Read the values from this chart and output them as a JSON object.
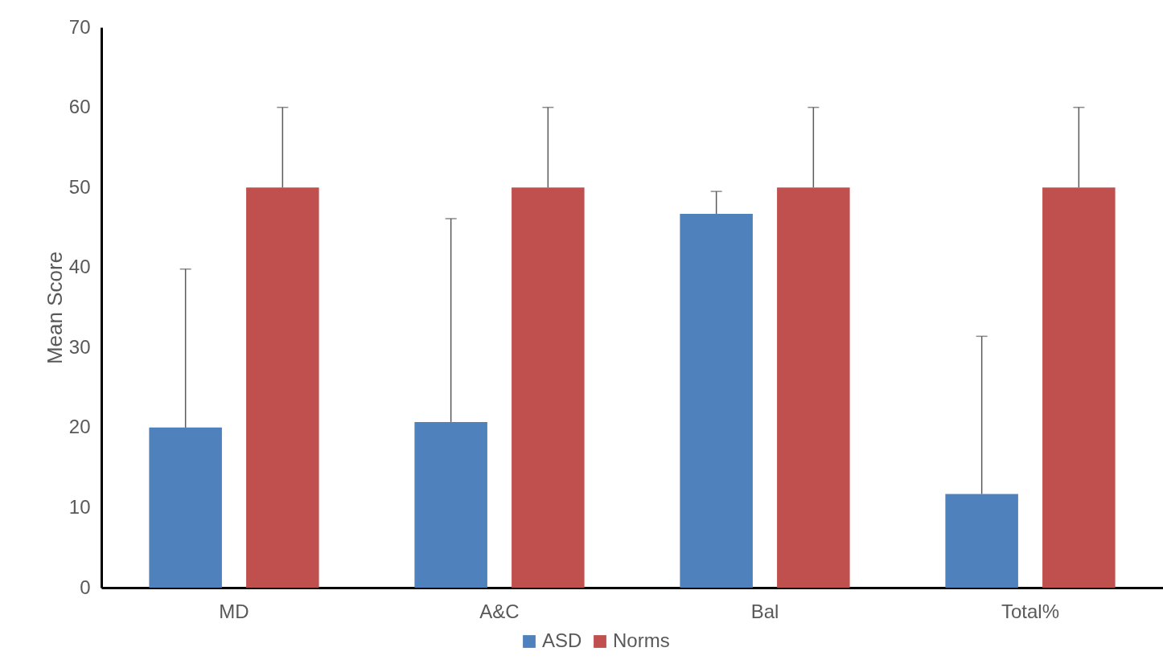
{
  "chart_data": {
    "type": "bar",
    "ylabel": "Mean Score",
    "categories": [
      "MD",
      "A&C",
      "Bal",
      "Total%"
    ],
    "series": [
      {
        "name": "ASD",
        "color": "#4f81bd",
        "values": [
          20,
          20.7,
          46.7,
          11.7
        ],
        "errors": [
          [
            20,
            39.8
          ],
          [
            20.7,
            46.1
          ],
          [
            46.7,
            49.5
          ],
          [
            11.7,
            31.4
          ]
        ]
      },
      {
        "name": "Norms",
        "color": "#c0504d",
        "values": [
          50,
          50,
          50,
          50
        ],
        "errors": [
          [
            50,
            60
          ],
          [
            50,
            60
          ],
          [
            50,
            60
          ],
          [
            50,
            60
          ]
        ]
      }
    ],
    "ylim": [
      0,
      70
    ],
    "yticks": [
      0,
      10,
      20,
      30,
      40,
      50,
      60,
      70
    ],
    "grid": false,
    "legend": "bottom"
  }
}
